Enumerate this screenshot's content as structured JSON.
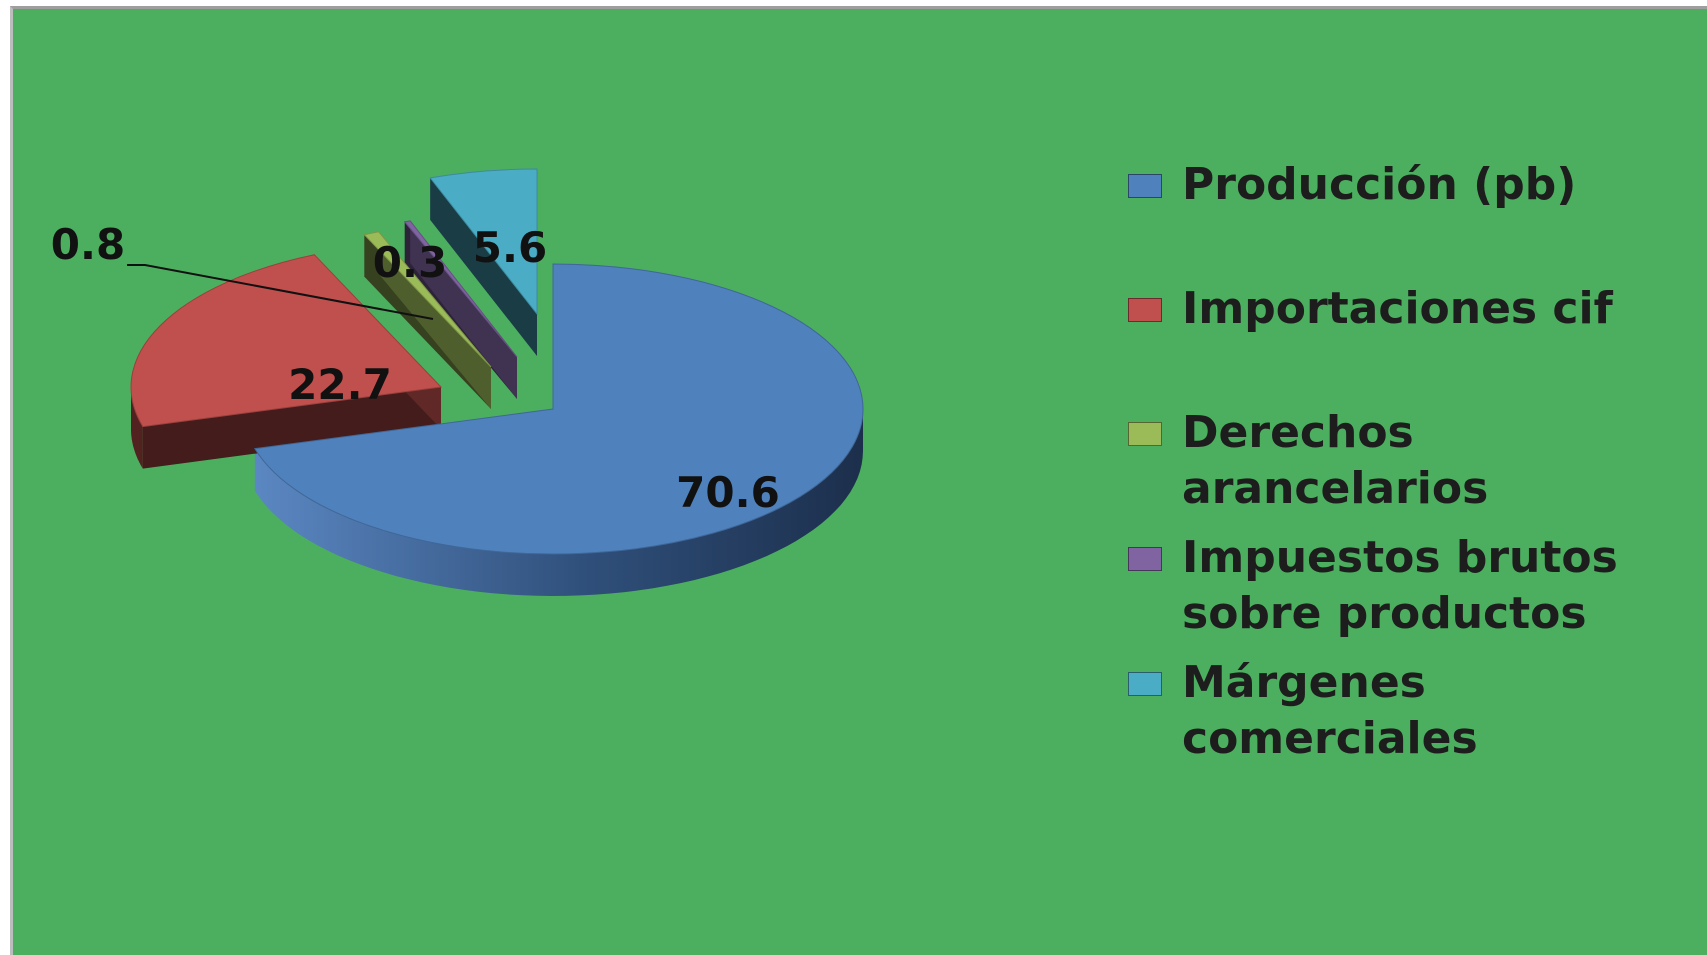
{
  "chart_data": {
    "type": "pie",
    "style": "3d-exploded",
    "title": "",
    "categories": [
      "Producción (pb)",
      "Importaciones cif",
      "Derechos arancelarios",
      "Impuestos brutos sobre productos",
      "Márgenes comerciales"
    ],
    "values": [
      70.6,
      22.7,
      0.8,
      0.3,
      5.6
    ],
    "labels": [
      "70.6",
      "22.7",
      "0.8",
      "0.3",
      "5.6"
    ],
    "colors": [
      "#4f81bd",
      "#c0504d",
      "#9bbb59",
      "#8064a2",
      "#4bacc6"
    ],
    "background_color": "#4caf5f",
    "legend_position": "right"
  }
}
